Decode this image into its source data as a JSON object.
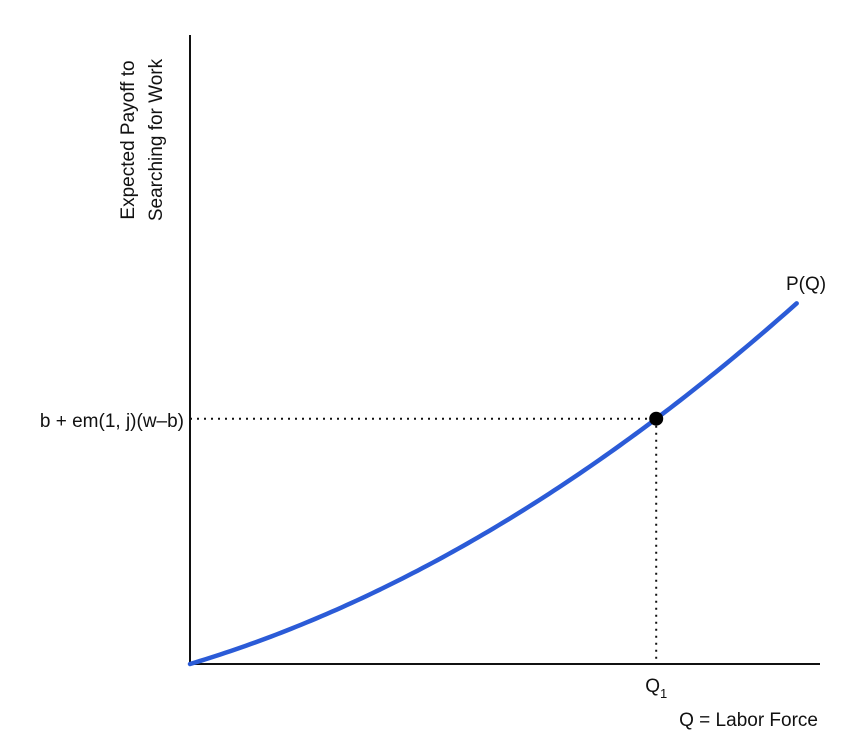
{
  "chart_data": {
    "type": "line",
    "title": "",
    "xlabel": "Q = Labor Force",
    "ylabel_lines": [
      "Expected Payoff to",
      "Searching for Work"
    ],
    "series": [
      {
        "name": "P(Q)",
        "color": "#2b5bd7"
      }
    ],
    "curve_label": "P(Q)",
    "x_tick_label": "Q",
    "x_tick_subscript": "1",
    "y_tick_label": "b + em(1, j)(w–b)",
    "point": {
      "x": 0.74,
      "y": 0.39
    },
    "grid": false,
    "legend": "none"
  },
  "colors": {
    "curve": "#2b5bd7",
    "axes": "#111111",
    "point": "#000000",
    "guide": "#111111"
  }
}
